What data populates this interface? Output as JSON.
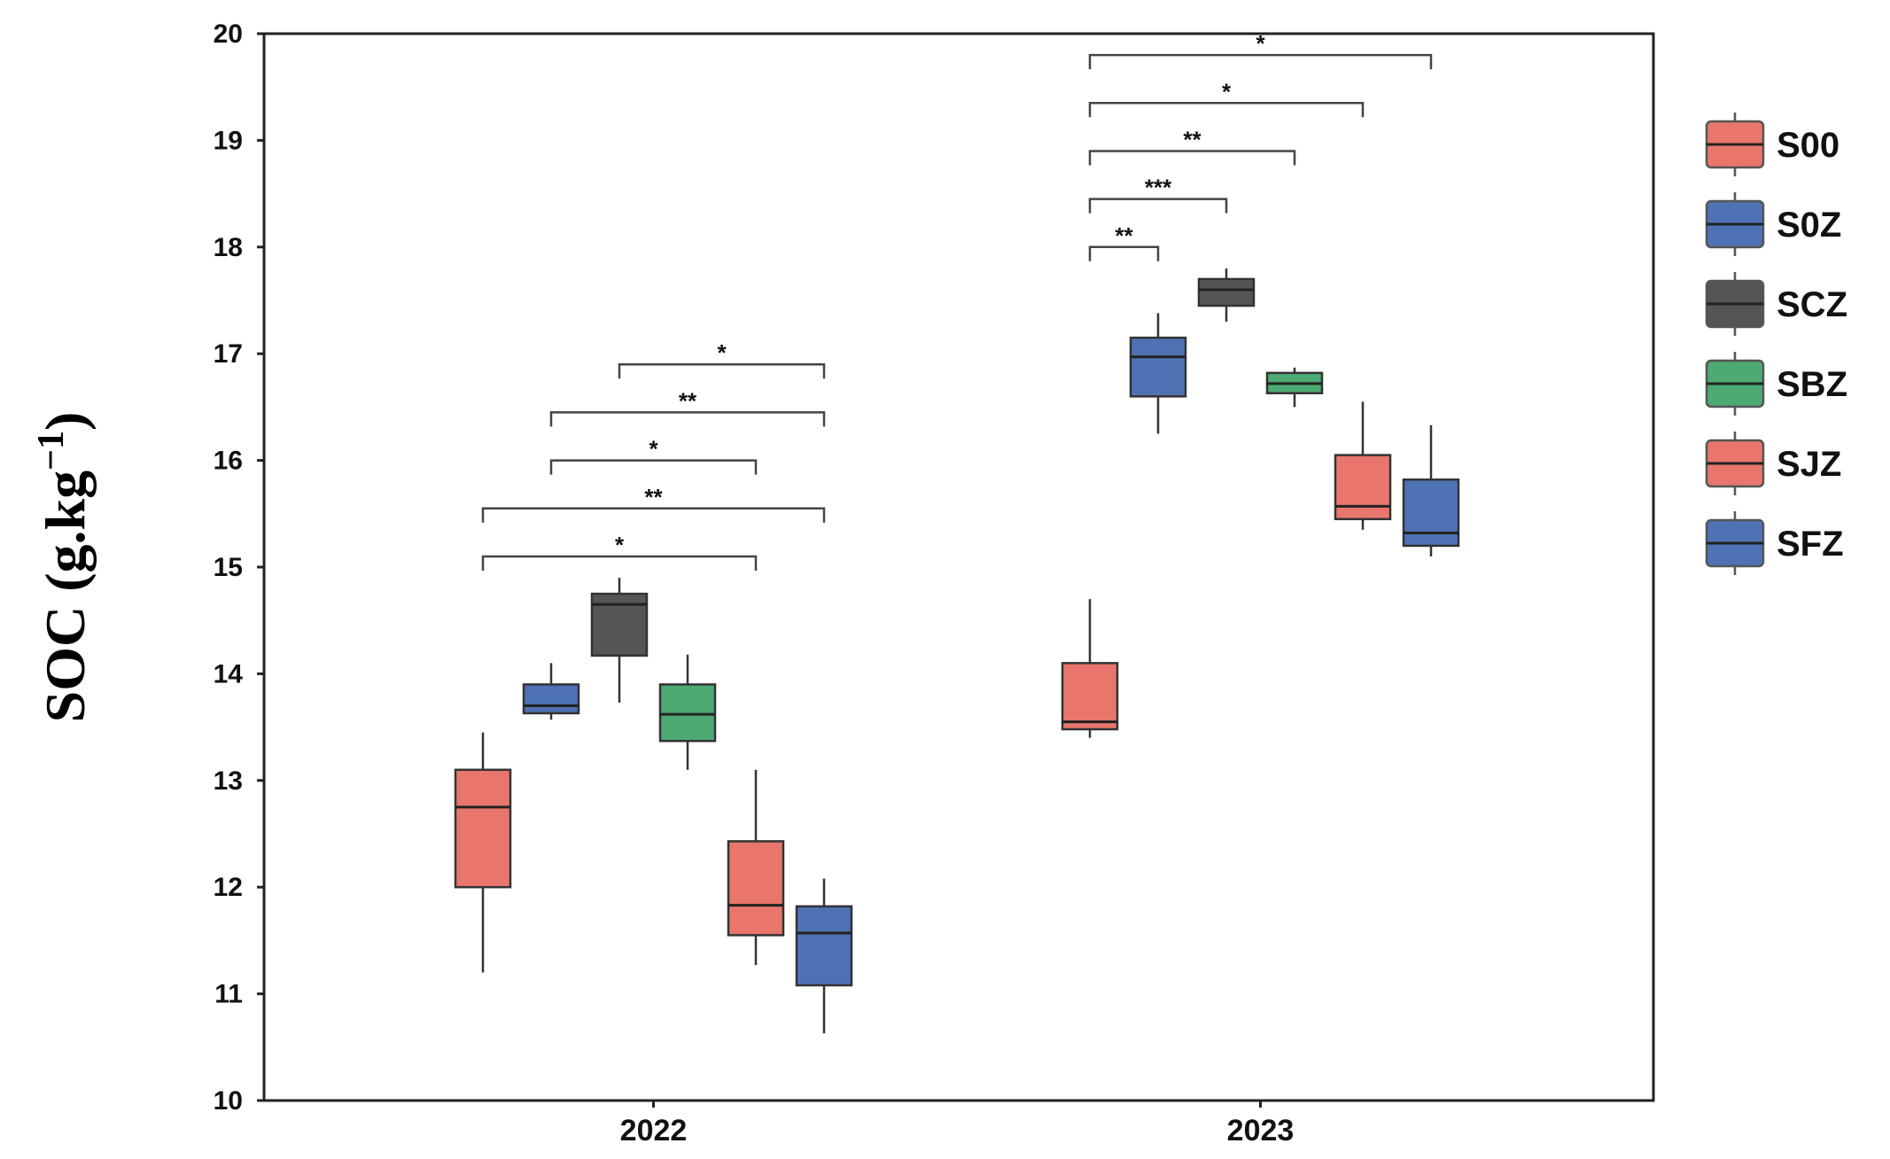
{
  "chart_data": {
    "type": "box",
    "title": "",
    "xlabel": "",
    "ylabel": "SOC (g.kg",
    "ylabel_sup": "−1",
    "ylabel_end": ")",
    "ylim": [
      10,
      20
    ],
    "yticks": [
      "10",
      "11",
      "12",
      "13",
      "14",
      "15",
      "16",
      "17",
      "18",
      "19",
      "20"
    ],
    "grid": false,
    "legend_position": "right",
    "categories": [
      "2022",
      "2023"
    ],
    "series": [
      {
        "name": "S00",
        "color": "#e8766c",
        "boxes": [
          {
            "min": 11.2,
            "q1": 12.0,
            "median": 12.75,
            "q3": 13.1,
            "max": 13.45
          },
          {
            "min": 13.4,
            "q1": 13.48,
            "median": 13.55,
            "q3": 14.1,
            "max": 14.7
          }
        ]
      },
      {
        "name": "S0Z",
        "color": "#4f72b5",
        "boxes": [
          {
            "min": 13.57,
            "q1": 13.63,
            "median": 13.7,
            "q3": 13.9,
            "max": 14.1
          },
          {
            "min": 16.25,
            "q1": 16.6,
            "median": 16.97,
            "q3": 17.15,
            "max": 17.38
          }
        ]
      },
      {
        "name": "SCZ",
        "color": "#555555",
        "boxes": [
          {
            "min": 13.73,
            "q1": 14.17,
            "median": 14.65,
            "q3": 14.75,
            "max": 14.9
          },
          {
            "min": 17.3,
            "q1": 17.45,
            "median": 17.6,
            "q3": 17.7,
            "max": 17.8
          }
        ]
      },
      {
        "name": "SBZ",
        "color": "#4daa73",
        "boxes": [
          {
            "min": 13.1,
            "q1": 13.37,
            "median": 13.62,
            "q3": 13.9,
            "max": 14.18
          },
          {
            "min": 16.5,
            "q1": 16.63,
            "median": 16.72,
            "q3": 16.82,
            "max": 16.87
          }
        ]
      },
      {
        "name": "SJZ",
        "color": "#e8766c",
        "boxes": [
          {
            "min": 11.27,
            "q1": 11.55,
            "median": 11.83,
            "q3": 12.43,
            "max": 13.1
          },
          {
            "min": 15.35,
            "q1": 15.45,
            "median": 15.57,
            "q3": 16.05,
            "max": 16.55
          }
        ]
      },
      {
        "name": "SFZ",
        "color": "#4f72b5",
        "boxes": [
          {
            "min": 10.63,
            "q1": 11.08,
            "median": 11.57,
            "q3": 11.82,
            "max": 12.08
          },
          {
            "min": 15.1,
            "q1": 15.2,
            "median": 15.32,
            "q3": 15.82,
            "max": 16.33
          }
        ]
      }
    ],
    "significance": [
      {
        "group": 0,
        "from": 0,
        "to": 4,
        "label": "*",
        "level": 15.1
      },
      {
        "group": 0,
        "from": 0,
        "to": 5,
        "label": "**",
        "level": 15.55
      },
      {
        "group": 0,
        "from": 1,
        "to": 4,
        "label": "*",
        "level": 16.0
      },
      {
        "group": 0,
        "from": 1,
        "to": 5,
        "label": "**",
        "level": 16.45
      },
      {
        "group": 0,
        "from": 2,
        "to": 5,
        "label": "*",
        "level": 16.9
      },
      {
        "group": 1,
        "from": 0,
        "to": 1,
        "label": "**",
        "level": 18.0
      },
      {
        "group": 1,
        "from": 0,
        "to": 2,
        "label": "***",
        "level": 18.45
      },
      {
        "group": 1,
        "from": 0,
        "to": 3,
        "label": "**",
        "level": 18.9
      },
      {
        "group": 1,
        "from": 0,
        "to": 4,
        "label": "*",
        "level": 19.35
      },
      {
        "group": 1,
        "from": 0,
        "to": 5,
        "label": "*",
        "level": 19.8
      }
    ]
  }
}
